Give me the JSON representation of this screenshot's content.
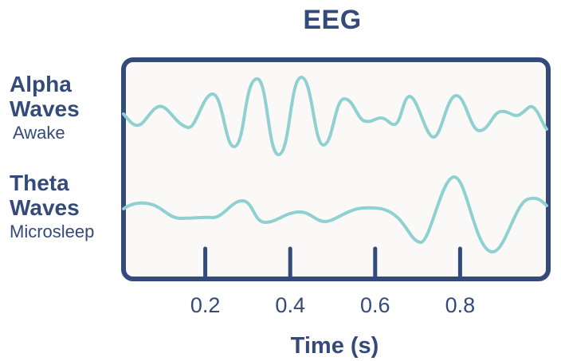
{
  "title": "EEG",
  "rows": [
    {
      "name": "Alpha Waves",
      "line1": "Alpha",
      "line2": "Waves",
      "state": "Awake"
    },
    {
      "name": "Theta Waves",
      "line1": "Theta",
      "line2": "Waves",
      "state": "Microsleep"
    }
  ],
  "x_axis": {
    "label": "Time (s)",
    "ticks": [
      "0.2",
      "0.4",
      "0.6",
      "0.8"
    ]
  },
  "colors": {
    "frame": "#334a7a",
    "wave": "#8fd0d0",
    "panel": "#fbf9f7",
    "text": "#334a7a"
  }
}
